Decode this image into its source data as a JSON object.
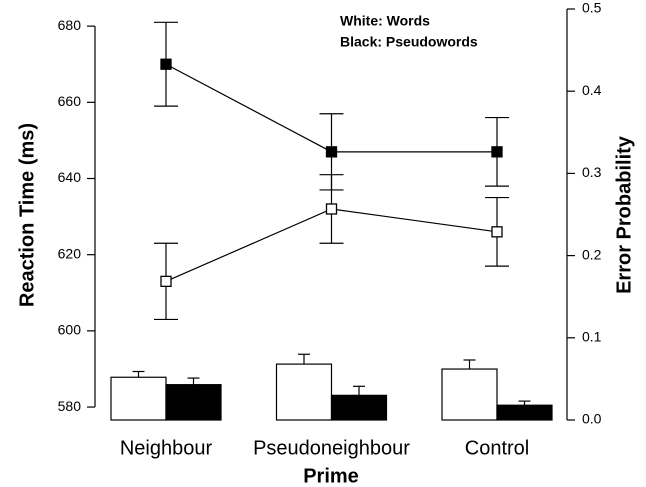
{
  "chart_data": {
    "type": "line",
    "categories": [
      "Neighbour",
      "Pseudoneighbour",
      "Control"
    ],
    "xlabel": "Prime",
    "ylabel": "Reaction Time (ms)",
    "y2label": "Error Probability",
    "annotations": [
      "White: Words",
      "Black: Pseudowords"
    ],
    "ylim": [
      576.6,
      684.5
    ],
    "yticks": [
      580,
      600,
      620,
      640,
      660,
      680
    ],
    "y2lim": [
      0,
      0.5
    ],
    "y2ticks": [
      {
        "value": 0,
        "label": "0.0"
      },
      0.1,
      0.2,
      0.3,
      0.4,
      0.5
    ],
    "series": [
      {
        "type": "line",
        "color": "black",
        "values": [
          670,
          647,
          647
        ],
        "errors": [
          11,
          10,
          9
        ]
      },
      {
        "type": "line",
        "color": "white",
        "values": [
          613,
          632,
          626
        ],
        "errors": [
          10,
          9,
          9
        ]
      },
      {
        "type": "bar",
        "axis": "y2",
        "color": "white",
        "values": [
          0.052,
          0.068,
          0.062
        ],
        "errors": [
          0.007,
          0.012,
          0.011
        ]
      },
      {
        "type": "bar",
        "axis": "y2",
        "color": "black",
        "values": [
          0.043,
          0.03,
          0.018
        ],
        "errors": [
          0.008,
          0.011,
          0.005
        ]
      }
    ]
  }
}
